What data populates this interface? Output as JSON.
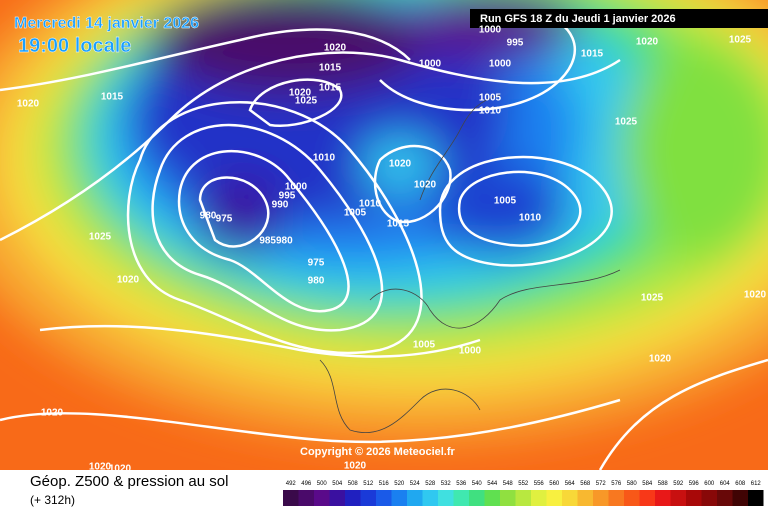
{
  "header": {
    "date": "Mercredi 14 janvier 2026",
    "time": "19:00 locale",
    "run": "Run GFS 18 Z du Jeudi 1 janvier 2026"
  },
  "copyright": "Copyright © 2026 Meteociel.fr",
  "footer": {
    "title": "Géop. Z500 & pression au sol",
    "lead": "(+ 312h)"
  },
  "isobar_labels": [
    "1020",
    "1015",
    "1015",
    "1020",
    "1020",
    "1025",
    "1015",
    "1010",
    "1000",
    "995",
    "990",
    "980",
    "975",
    "985980",
    "975",
    "980",
    "1005",
    "1010",
    "1015",
    "1020",
    "1020",
    "1000",
    "1000",
    "1005",
    "1010",
    "1015",
    "1020",
    "1025",
    "1005",
    "1010",
    "1025",
    "1020",
    "1025",
    "1020",
    "1005",
    "1000",
    "1020",
    "1020",
    "1020",
    "1020",
    "1025",
    "1020",
    "1000",
    "995"
  ],
  "legend": {
    "values": [
      492,
      496,
      500,
      504,
      508,
      512,
      516,
      520,
      524,
      528,
      532,
      536,
      540,
      544,
      548,
      552,
      556,
      560,
      564,
      568,
      572,
      576,
      580,
      584,
      588,
      592,
      596,
      600,
      604,
      608,
      612
    ],
    "colors": [
      "#3a0a4a",
      "#4a0a6a",
      "#5a0a8a",
      "#3a10a0",
      "#2020c0",
      "#1a3ad8",
      "#1a5ae8",
      "#1a80f0",
      "#20a8f0",
      "#30c8f0",
      "#40e0e0",
      "#40e8b0",
      "#40e080",
      "#60e050",
      "#90e040",
      "#b8e840",
      "#e0f040",
      "#f8f040",
      "#f8d838",
      "#f8b830",
      "#f89828",
      "#f87820",
      "#f85818",
      "#f83818",
      "#e81818",
      "#c81010",
      "#a80808",
      "#880808",
      "#680808",
      "#400404",
      "#000000"
    ]
  }
}
